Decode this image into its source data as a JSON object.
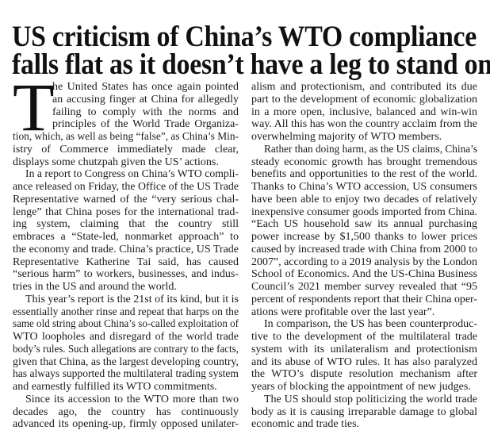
{
  "headline": {
    "lines": [
      "US criticism of China’s WTO compliance",
      "falls flat as it doesn’t have a leg to stand on"
    ]
  },
  "article": {
    "drop_cap": "T",
    "columns": [
      {
        "paragraphs": [
          {
            "lines": [
              "he United States has once again pointed",
              "an accusing finger at China for allegedly",
              "failing to comply with the norms and",
              "principles of the World Trade Organiza-",
              "tion, which, as well as being “false”, as China’s Min-",
              "istry of Commerce immediately made clear,",
              "displays some chutzpah given the US’ actions."
            ]
          },
          {
            "lines": [
              "In a report to Congress on China’s WTO compli-",
              "ance released on Friday, the Office of the US Trade",
              "Representative warned of the “very serious chal-",
              "lenge” that China poses for the international trad-",
              "ing system, claiming that the country still",
              "embraces a “State-led, nonmarket approach” to",
              "the economy and trade. China’s practice, US Trade",
              "Representative Katherine Tai said, has caused",
              "“serious harm” to workers, businesses, and indus-",
              "tries in the US and around the world."
            ]
          },
          {
            "lines": [
              "This year’s report is the 21st of its kind, but it is",
              "essentially another rinse and repeat that harps on the",
              "same old string about China’s so-called exploitation of",
              "WTO loopholes and disregard of the world trade",
              "body’s rules. Such allegations are contrary to the facts,",
              "given that China, as the largest developing country,",
              "has always supported the multilateral trading system",
              "and earnestly fulfilled its WTO commitments."
            ]
          },
          {
            "continues": true,
            "lines": [
              "Since its accession to the WTO more than two",
              "decades ago, the country has continuously",
              "advanced its opening-up, firmly opposed unilater-"
            ]
          }
        ]
      },
      {
        "paragraphs": [
          {
            "continued": true,
            "lines": [
              "alism and protectionism, and contributed its due",
              "part to the development of economic globalization",
              "in a more open, inclusive, balanced and win-win",
              "way. All this has won the country acclaim from the",
              "overwhelming majority of WTO members."
            ]
          },
          {
            "lines": [
              "Rather than doing harm, as the US claims, China’s",
              "steady economic growth has brought tremendous",
              "benefits and opportunities to the rest of the world.",
              "Thanks to China’s WTO accession, US consumers",
              "have been able to enjoy two decades of relatively",
              "inexpensive consumer goods imported from China.",
              "“Each US household saw its annual purchasing",
              "power increase by $1,500 thanks to lower prices",
              "caused by increased trade with China from 2000 to",
              "2007”, according to a 2019 analysis by the London",
              "School of Economics. And the US-China Business",
              "Council’s 2021 member survey revealed that “95",
              "percent of respondents report that their China oper-",
              "ations were profitable over the last year”."
            ]
          },
          {
            "lines": [
              "In comparison, the US has been counterproduc-",
              "tive to the development of the multilateral trade",
              "system with its unilateralism and protectionism",
              "and its abuse of WTO rules. It has also paralyzed",
              "the WTO’s dispute resolution mechanism after",
              "years of blocking the appointment of new judges."
            ]
          },
          {
            "lines": [
              "The US should stop politicizing the world trade",
              "body as it is causing irreparable damage to global",
              "economic and trade ties."
            ]
          }
        ]
      }
    ]
  }
}
